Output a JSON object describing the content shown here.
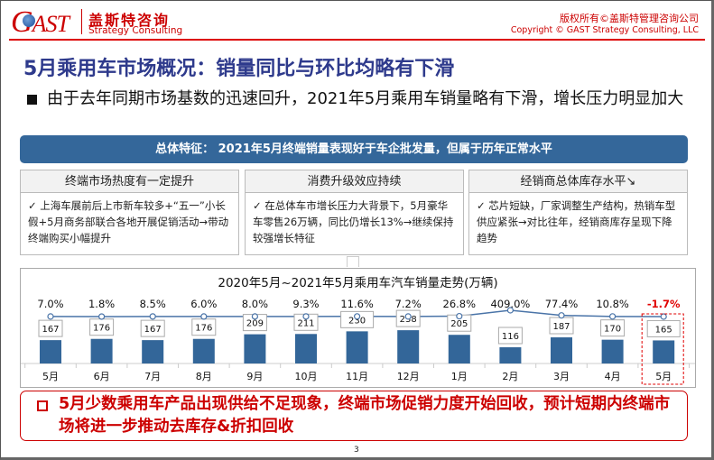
{
  "header": {
    "logo_text": "GAST",
    "brand_cn": "盖斯特咨询",
    "brand_en": "Strategy Consulting",
    "copyright_cn": "版权所有©盖斯特管理咨询公司",
    "copyright_en": "Copyright © GAST Strategy Consulting, LLC"
  },
  "title": "5月乘用车市场概况：销量同比与环比均略有下滑",
  "bullet": "由于去年同期市场基数的迅速回升，2021年5月乘用车销量略有下滑，增长压力明显加大",
  "summary": "总体特征： 2021年5月终端销量表现好于车企批发量，但属于历年正常水平",
  "cards": [
    {
      "title": "终端市场热度有一定提升",
      "body": "✓ 上海车展前后上市新车较多+“五一”小长假+5月商务部联合各地开展促销活动→带动终端购买小幅提升"
    },
    {
      "title": "消费升级效应持续",
      "body": "✓ 在总体车市增长压力大背景下，5月豪华车零售26万辆，同比仍增长13%→继续保持较强增长特征"
    },
    {
      "title": "经销商总体库存水平↘",
      "body": "✓ 芯片短缺，厂家调整生产结构，热销车型供应紧张→对比往年，经销商库存呈现下降趋势"
    }
  ],
  "chart_data": {
    "type": "bar",
    "title": "2020年5月~2021年5月乘用车汽车销量走势(万辆)",
    "categories": [
      "5月",
      "6月",
      "7月",
      "8月",
      "9月",
      "10月",
      "11月",
      "12月",
      "1月",
      "2月",
      "3月",
      "4月",
      "5月"
    ],
    "series": [
      {
        "name": "销量(万辆)",
        "type": "bar",
        "values": [
          167,
          176,
          167,
          176,
          209,
          211,
          230,
          238,
          205,
          116,
          187,
          170,
          165
        ]
      },
      {
        "name": "同比增长",
        "type": "line",
        "values": [
          7.0,
          1.8,
          8.5,
          6.0,
          8.0,
          9.3,
          11.6,
          7.2,
          26.8,
          409.0,
          77.4,
          10.8,
          -1.7
        ],
        "labels": [
          "7.0%",
          "1.8%",
          "8.5%",
          "6.0%",
          "8.0%",
          "9.3%",
          "11.6%",
          "7.2%",
          "26.8%",
          "409.0%",
          "77.4%",
          "10.8%",
          "-1.7%"
        ]
      }
    ],
    "highlight_index": 12,
    "colors": {
      "bar": "#336699",
      "line": "#4a74a8",
      "highlight": "#e00000"
    }
  },
  "footer": "5月少数乘用车产品出现供给不足现象，终端市场促销力度开始回收，预计短期内终端市场将进一步推动去库存&折扣回收",
  "page_number": "3"
}
